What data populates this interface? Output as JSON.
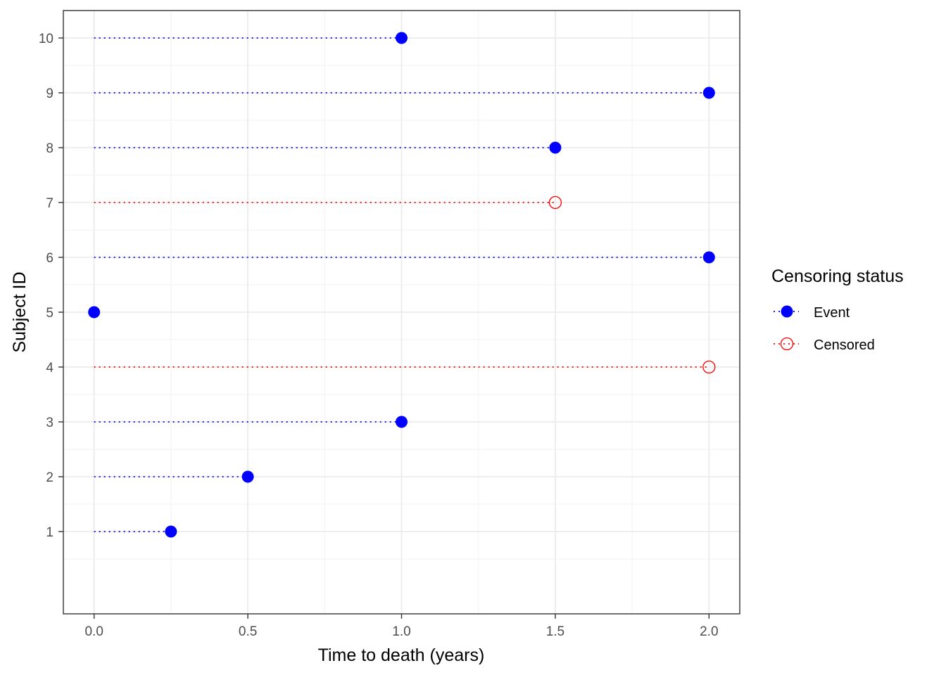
{
  "chart_data": {
    "type": "scatter",
    "xlabel": "Time to death (years)",
    "ylabel": "Subject ID",
    "xlim": [
      -0.1,
      2.1
    ],
    "ylim": [
      -0.5,
      10.5
    ],
    "x_ticks": [
      0,
      0.5,
      1,
      1.5,
      2
    ],
    "x_tick_labels": [
      "0.0",
      "0.5",
      "1.0",
      "1.5",
      "2.0"
    ],
    "y_ticks": [
      1,
      2,
      3,
      4,
      5,
      6,
      7,
      8,
      9,
      10
    ],
    "y_tick_labels": [
      "1",
      "2",
      "3",
      "4",
      "5",
      "6",
      "7",
      "8",
      "9",
      "10"
    ],
    "grid": true,
    "legend": {
      "title": "Censoring status",
      "position": "right",
      "entries": [
        {
          "label": "Event",
          "status": "event",
          "color": "#0000ff",
          "filled": true
        },
        {
          "label": "Censored",
          "status": "censored",
          "color": "#ff0000",
          "filled": false
        }
      ]
    },
    "points": [
      {
        "id": 1,
        "time": 0.25,
        "status": "event"
      },
      {
        "id": 2,
        "time": 0.5,
        "status": "event"
      },
      {
        "id": 3,
        "time": 1.0,
        "status": "event"
      },
      {
        "id": 4,
        "time": 2.0,
        "status": "censored"
      },
      {
        "id": 5,
        "time": 0.0,
        "status": "event"
      },
      {
        "id": 6,
        "time": 2.0,
        "status": "event"
      },
      {
        "id": 7,
        "time": 1.5,
        "status": "censored"
      },
      {
        "id": 8,
        "time": 1.5,
        "status": "event"
      },
      {
        "id": 9,
        "time": 2.0,
        "status": "event"
      },
      {
        "id": 10,
        "time": 1.0,
        "status": "event"
      }
    ]
  }
}
